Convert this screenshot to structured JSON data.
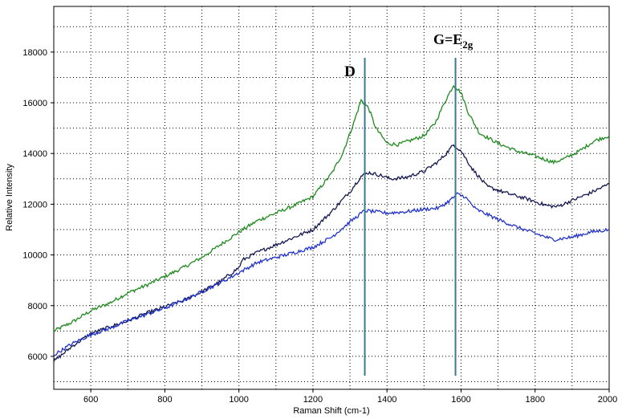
{
  "chart_data": {
    "type": "line",
    "title": "",
    "xlabel": "Raman Shift (cm-1)",
    "ylabel": "Relative Intensity",
    "xlim": [
      500,
      2000
    ],
    "ylim": [
      4700,
      19800
    ],
    "grid": true,
    "x_ticks": [
      600,
      800,
      1000,
      1200,
      1400,
      1600,
      1800,
      2000
    ],
    "y_ticks": [
      6000,
      8000,
      10000,
      12000,
      14000,
      16000,
      18000
    ],
    "series": [
      {
        "color": "#1f8a1f",
        "points": [
          [
            500,
            7000
          ],
          [
            550,
            7350
          ],
          [
            600,
            7800
          ],
          [
            650,
            8100
          ],
          [
            700,
            8500
          ],
          [
            750,
            8800
          ],
          [
            800,
            9150
          ],
          [
            850,
            9500
          ],
          [
            900,
            9900
          ],
          [
            950,
            10400
          ],
          [
            1000,
            10900
          ],
          [
            1050,
            11350
          ],
          [
            1100,
            11650
          ],
          [
            1150,
            11950
          ],
          [
            1200,
            12300
          ],
          [
            1250,
            13200
          ],
          [
            1280,
            14000
          ],
          [
            1310,
            15200
          ],
          [
            1330,
            16100
          ],
          [
            1350,
            15800
          ],
          [
            1370,
            15000
          ],
          [
            1400,
            14400
          ],
          [
            1430,
            14350
          ],
          [
            1460,
            14500
          ],
          [
            1500,
            14700
          ],
          [
            1530,
            15200
          ],
          [
            1555,
            16000
          ],
          [
            1580,
            16700
          ],
          [
            1600,
            16400
          ],
          [
            1620,
            15600
          ],
          [
            1650,
            14800
          ],
          [
            1700,
            14400
          ],
          [
            1750,
            14100
          ],
          [
            1800,
            13900
          ],
          [
            1850,
            13650
          ],
          [
            1880,
            13800
          ],
          [
            1920,
            14100
          ],
          [
            1960,
            14500
          ],
          [
            2000,
            14700
          ]
        ]
      },
      {
        "color": "#141850",
        "points": [
          [
            500,
            5800
          ],
          [
            550,
            6400
          ],
          [
            600,
            6900
          ],
          [
            650,
            7150
          ],
          [
            700,
            7400
          ],
          [
            750,
            7700
          ],
          [
            800,
            7950
          ],
          [
            850,
            8200
          ],
          [
            900,
            8550
          ],
          [
            950,
            8950
          ],
          [
            1000,
            9500
          ],
          [
            1010,
            9800
          ],
          [
            1050,
            10100
          ],
          [
            1100,
            10400
          ],
          [
            1150,
            10700
          ],
          [
            1200,
            11000
          ],
          [
            1250,
            11700
          ],
          [
            1300,
            12500
          ],
          [
            1330,
            13100
          ],
          [
            1350,
            13250
          ],
          [
            1380,
            13150
          ],
          [
            1410,
            13000
          ],
          [
            1450,
            13050
          ],
          [
            1500,
            13300
          ],
          [
            1540,
            13700
          ],
          [
            1560,
            14000
          ],
          [
            1580,
            14350
          ],
          [
            1600,
            14100
          ],
          [
            1630,
            13400
          ],
          [
            1670,
            12700
          ],
          [
            1720,
            12450
          ],
          [
            1780,
            12200
          ],
          [
            1830,
            11950
          ],
          [
            1860,
            11900
          ],
          [
            1900,
            12150
          ],
          [
            1950,
            12450
          ],
          [
            2000,
            12800
          ]
        ]
      },
      {
        "color": "#2233cc",
        "points": [
          [
            500,
            6050
          ],
          [
            550,
            6500
          ],
          [
            600,
            6850
          ],
          [
            650,
            7100
          ],
          [
            700,
            7400
          ],
          [
            750,
            7650
          ],
          [
            800,
            7900
          ],
          [
            850,
            8200
          ],
          [
            900,
            8550
          ],
          [
            950,
            8900
          ],
          [
            1000,
            9300
          ],
          [
            1050,
            9700
          ],
          [
            1100,
            9900
          ],
          [
            1150,
            10100
          ],
          [
            1200,
            10300
          ],
          [
            1250,
            10700
          ],
          [
            1300,
            11300
          ],
          [
            1340,
            11750
          ],
          [
            1370,
            11700
          ],
          [
            1400,
            11650
          ],
          [
            1450,
            11700
          ],
          [
            1500,
            11800
          ],
          [
            1540,
            11850
          ],
          [
            1570,
            12150
          ],
          [
            1590,
            12400
          ],
          [
            1610,
            12300
          ],
          [
            1640,
            11800
          ],
          [
            1700,
            11400
          ],
          [
            1750,
            11100
          ],
          [
            1800,
            10850
          ],
          [
            1850,
            10600
          ],
          [
            1900,
            10700
          ],
          [
            1950,
            10900
          ],
          [
            2000,
            11000
          ]
        ]
      }
    ],
    "markers": [
      {
        "label": "D",
        "x": 1340,
        "color": "#3a7a8e"
      },
      {
        "label_main": "G=E",
        "label_sub": "2g",
        "x": 1585,
        "color": "#3a7a8e"
      }
    ]
  }
}
